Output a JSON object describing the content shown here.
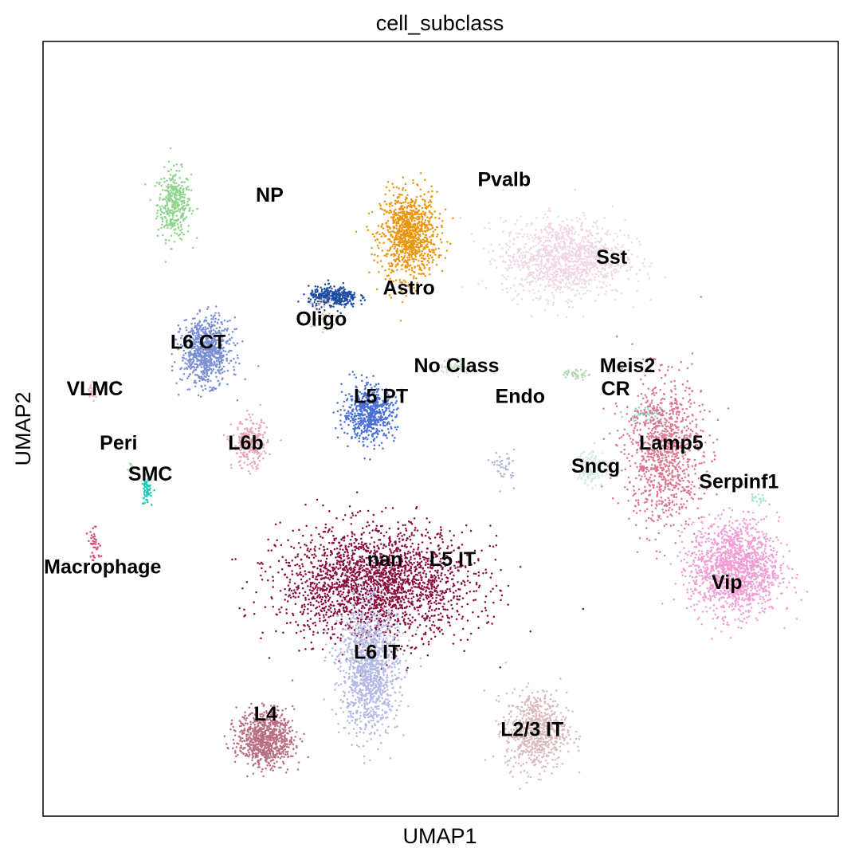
{
  "chart_data": {
    "type": "scatter",
    "title": "cell_subclass",
    "xlabel": "UMAP1",
    "ylabel": "UMAP2",
    "grid": false,
    "legend": "on data",
    "clusters": [
      {
        "name": "NP",
        "color": "#8fd48c",
        "center": [
          16.5,
          79
        ],
        "spread": [
          1.9,
          4.0
        ],
        "n": 380
      },
      {
        "name": "Pvalb",
        "color": "#e8960e",
        "center": [
          46,
          75
        ],
        "spread": [
          3.2,
          5.0
        ],
        "n": 1000
      },
      {
        "name": "Sst",
        "color": "#f0d6e4",
        "center": [
          65.5,
          72
        ],
        "spread": [
          7.0,
          4.5
        ],
        "n": 1200
      },
      {
        "name": "Astro",
        "color": "#1f4ea3",
        "center": [
          36.5,
          67
        ],
        "spread": [
          2.8,
          1.2
        ],
        "n": 360
      },
      {
        "name": "Oligo",
        "color": "#d6c6ae",
        "center": [
          35,
          65
        ],
        "spread": [
          1.6,
          2.2
        ],
        "n": 50
      },
      {
        "name": "L6 CT",
        "color": "#7b8fd4",
        "center": [
          20.5,
          60
        ],
        "spread": [
          2.8,
          3.8
        ],
        "n": 800
      },
      {
        "name": "VLMC",
        "color": "#e8b4cf",
        "center": [
          6.2,
          55
        ],
        "spread": [
          0.4,
          1.0
        ],
        "n": 30
      },
      {
        "name": "No Class",
        "color": "#c8e0c4",
        "center": [
          52,
          58
        ],
        "spread": [
          2.0,
          0.8
        ],
        "n": 60
      },
      {
        "name": "Meis2",
        "color": "#b2d8b0",
        "center": [
          67,
          57
        ],
        "spread": [
          1.5,
          0.6
        ],
        "n": 40
      },
      {
        "name": "CR",
        "color": "#8ed9c6",
        "center": [
          76,
          52
        ],
        "spread": [
          2.5,
          1.0
        ],
        "n": 60
      },
      {
        "name": "L5 PT",
        "color": "#4a6fd6",
        "center": [
          41,
          52
        ],
        "spread": [
          3.0,
          3.2
        ],
        "n": 600
      },
      {
        "name": "Endo",
        "color": "#aab3d9",
        "center": [
          58,
          45
        ],
        "spread": [
          1.2,
          2.0
        ],
        "n": 40
      },
      {
        "name": "Peri",
        "color": "#b3d6b0",
        "center": [
          11,
          45
        ],
        "spread": [
          0.4,
          0.6
        ],
        "n": 15
      },
      {
        "name": "L6b",
        "color": "#e6a8b4",
        "center": [
          26,
          48
        ],
        "spread": [
          2.0,
          2.8
        ],
        "n": 260
      },
      {
        "name": "SMC",
        "color": "#1ec7b5",
        "center": [
          13,
          42
        ],
        "spread": [
          0.5,
          1.6
        ],
        "n": 60
      },
      {
        "name": "Macrophage",
        "color": "#d94b74",
        "center": [
          6.5,
          35
        ],
        "spread": [
          0.8,
          1.8
        ],
        "n": 40
      },
      {
        "name": "Sncg",
        "color": "#d4e8e2",
        "center": [
          69,
          45
        ],
        "spread": [
          1.6,
          2.2
        ],
        "n": 120
      },
      {
        "name": "Lamp5",
        "color": "#dc7690",
        "center": [
          78,
          47
        ],
        "spread": [
          4.5,
          8.5
        ],
        "n": 1000
      },
      {
        "name": "Serpinf1",
        "color": "#a6e2d7",
        "center": [
          90,
          41
        ],
        "spread": [
          0.8,
          0.8
        ],
        "n": 20
      },
      {
        "name": "Vip",
        "color": "#f09ed4",
        "center": [
          87,
          32
        ],
        "spread": [
          5.0,
          5.5
        ],
        "n": 1500
      },
      {
        "name": "nan",
        "color": "#8a0c3e",
        "center": [
          42,
          30
        ],
        "spread": [
          11.0,
          6.5
        ],
        "n": 2300
      },
      {
        "name": "L5 IT",
        "color": "#8a0c3e",
        "center": [
          53,
          32
        ],
        "spread": [
          3.5,
          6.5
        ],
        "n": 0
      },
      {
        "name": "L6 IT",
        "color": "#b4b9e4",
        "center": [
          41,
          19
        ],
        "spread": [
          3.3,
          7.5
        ],
        "n": 1200
      },
      {
        "name": "L4",
        "color": "#b86e80",
        "center": [
          28,
          10
        ],
        "spread": [
          3.2,
          3.2
        ],
        "n": 800
      },
      {
        "name": "L2/3 IT",
        "color": "#d9b9bd",
        "center": [
          62,
          11
        ],
        "spread": [
          3.5,
          4.5
        ],
        "n": 700
      }
    ],
    "labels": [
      {
        "text": "NP",
        "x": 28.5,
        "y": 80
      },
      {
        "text": "Pvalb",
        "x": 58,
        "y": 82
      },
      {
        "text": "Sst",
        "x": 71.5,
        "y": 72
      },
      {
        "text": "Astro",
        "x": 46,
        "y": 68
      },
      {
        "text": "Oligo",
        "x": 35,
        "y": 64
      },
      {
        "text": "L6 CT",
        "x": 19.5,
        "y": 61
      },
      {
        "text": "VLMC",
        "x": 6.5,
        "y": 55
      },
      {
        "text": "No Class",
        "x": 52,
        "y": 58
      },
      {
        "text": "Meis2",
        "x": 73.5,
        "y": 58
      },
      {
        "text": "CR",
        "x": 72,
        "y": 55
      },
      {
        "text": "L5 PT",
        "x": 42.5,
        "y": 54
      },
      {
        "text": "Endo",
        "x": 60,
        "y": 54
      },
      {
        "text": "Peri",
        "x": 9.5,
        "y": 48
      },
      {
        "text": "L6b",
        "x": 25.5,
        "y": 48
      },
      {
        "text": "SMC",
        "x": 13.5,
        "y": 44
      },
      {
        "text": "Macrophage",
        "x": 7.5,
        "y": 32
      },
      {
        "text": "Sncg",
        "x": 69.5,
        "y": 45
      },
      {
        "text": "Lamp5",
        "x": 79,
        "y": 48
      },
      {
        "text": "Serpinf1",
        "x": 87.5,
        "y": 43
      },
      {
        "text": "Vip",
        "x": 86,
        "y": 30
      },
      {
        "text": "nan",
        "x": 43,
        "y": 33
      },
      {
        "text": "L5 IT",
        "x": 51.5,
        "y": 33
      },
      {
        "text": "L6 IT",
        "x": 42,
        "y": 21
      },
      {
        "text": "L4",
        "x": 28,
        "y": 13
      },
      {
        "text": "L2/3 IT",
        "x": 61.5,
        "y": 11
      }
    ]
  }
}
